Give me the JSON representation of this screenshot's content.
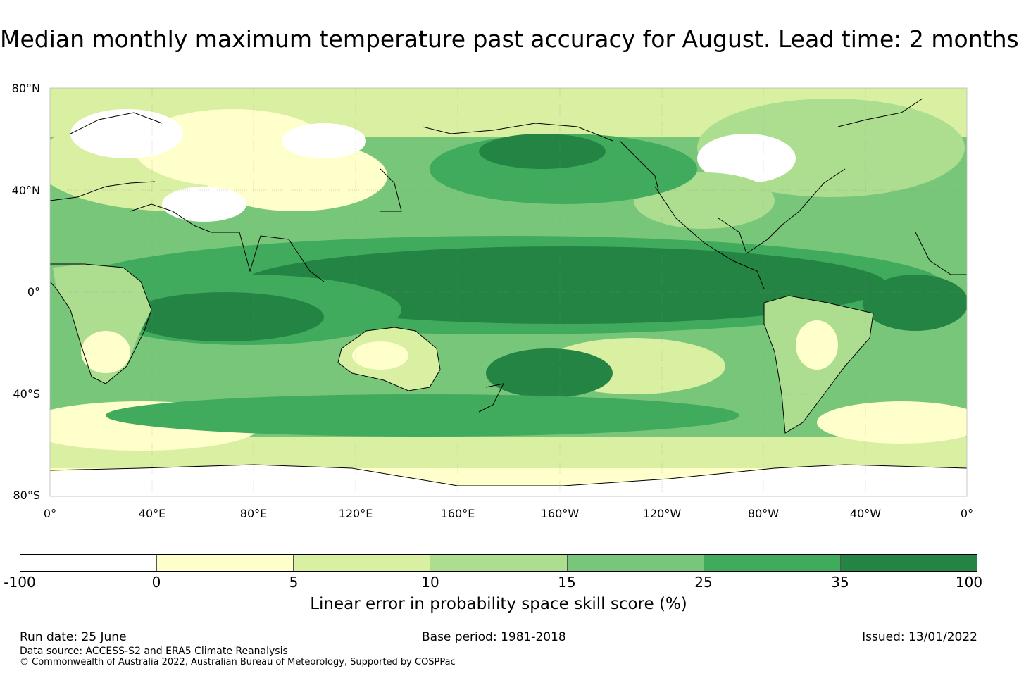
{
  "title": "Median monthly maximum temperature past accuracy for August. Lead time: 2 months",
  "map": {
    "lat_labels": [
      "80°N",
      "40°N",
      "0°",
      "40°S",
      "80°S"
    ],
    "lon_labels": [
      "0°",
      "40°E",
      "80°E",
      "120°E",
      "160°E",
      "160°W",
      "120°W",
      "80°W",
      "40°W",
      "0°"
    ],
    "ocean_color": "#228b45",
    "land_color": "#000000"
  },
  "legend": {
    "colors": [
      "#ffffff",
      "#ffffcc",
      "#d9f0a3",
      "#addd8e",
      "#78c679",
      "#41ab5d",
      "#238443"
    ],
    "ticks": [
      "-100",
      "0",
      "5",
      "10",
      "15",
      "25",
      "35",
      "100"
    ],
    "label": "Linear error in probability space skill score (%)"
  },
  "footer": {
    "run_date": "Run date: 25 June",
    "base_period": "Base period: 1981-2018",
    "issued": "Issued: 13/01/2022",
    "data_source": "Data source: ACCESS-S2 and ERA5 Climate Reanalysis",
    "copyright": "© Commonwealth of Australia 2022, Australian Bureau of Meteorology, Supported by COSPPac"
  }
}
